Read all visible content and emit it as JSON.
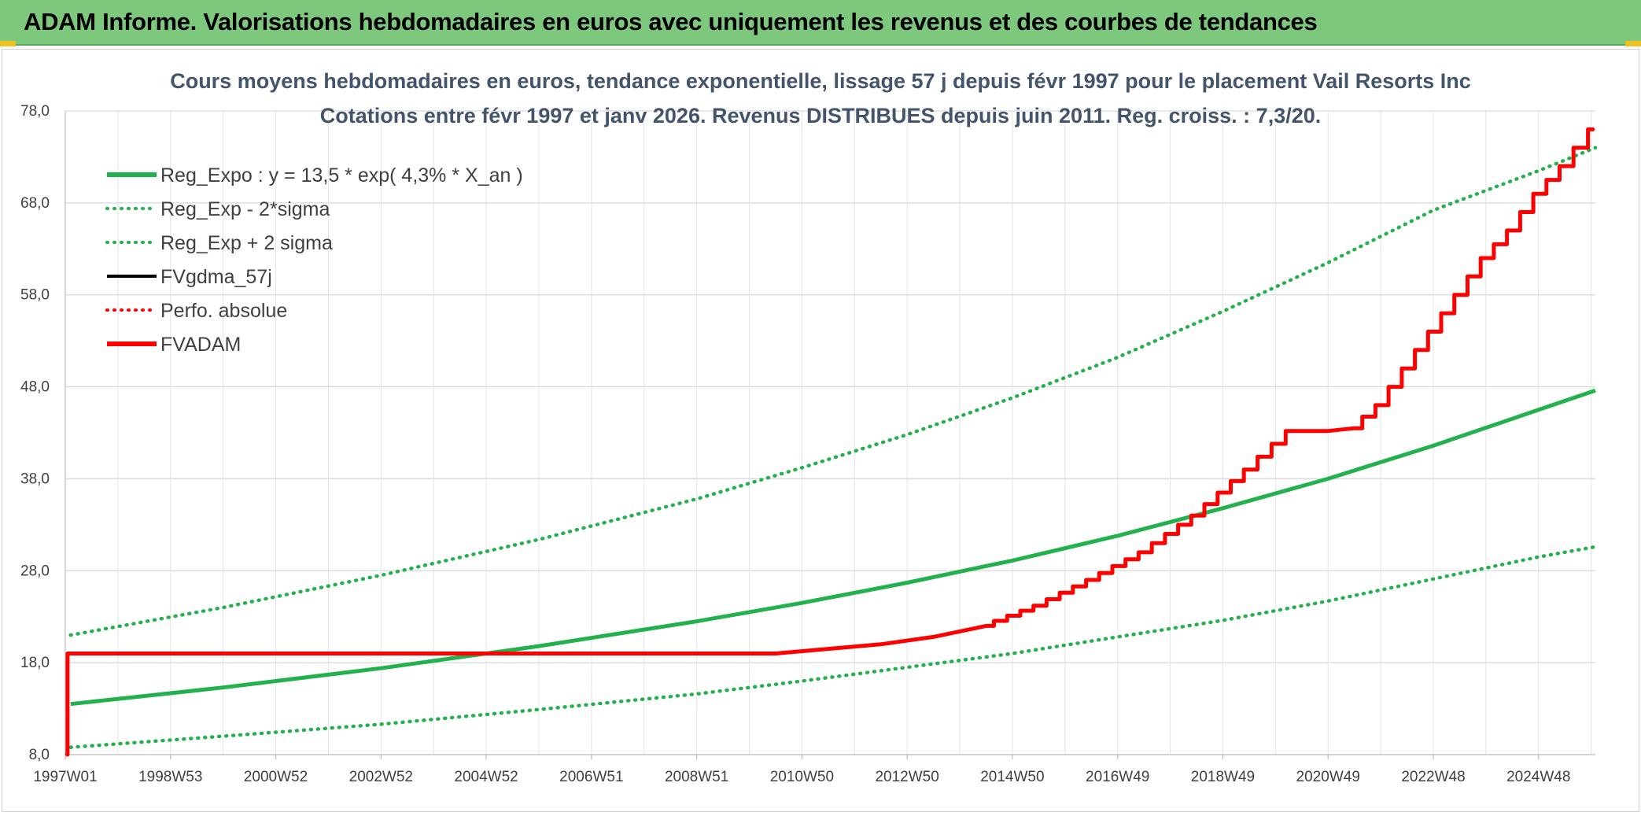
{
  "banner": {
    "title": "ADAM Informe. Valorisations hebdomadaires en euros avec uniquement les revenus et des courbes de tendances"
  },
  "chart_data": {
    "type": "line",
    "title": [
      "Cours moyens hebdomadaires en euros, tendance exponentielle, lissage 57 j depuis févr 1997 pour le placement Vail Resorts Inc",
      "Cotations entre févr 1997 et janv 2026. Revenus DISTRIBUES depuis juin 2011. Reg. croiss. : 7,3/20."
    ],
    "xlabel": "",
    "ylabel": "",
    "x_range": [
      1997.0,
      2026.08
    ],
    "ylim": [
      8.0,
      78.0
    ],
    "y_ticks": [
      8.0,
      18.0,
      28.0,
      38.0,
      48.0,
      58.0,
      68.0,
      78.0
    ],
    "y_tick_labels": [
      "8,0",
      "18,0",
      "28,0",
      "38,0",
      "48,0",
      "58,0",
      "68,0",
      "78,0"
    ],
    "x_ticks": [
      1997.0,
      1999.0,
      2001.0,
      2003.0,
      2005.0,
      2007.0,
      2009.0,
      2011.0,
      2013.0,
      2015.0,
      2017.0,
      2019.0,
      2021.0,
      2023.0,
      2025.0
    ],
    "x_tick_labels": [
      "1997W01",
      "1998W53",
      "2000W52",
      "2002W52",
      "2004W52",
      "2006W51",
      "2008W51",
      "2010W50",
      "2012W50",
      "2014W50",
      "2016W49",
      "2018W49",
      "2020W49",
      "2022W48",
      "2024W48"
    ],
    "grid": true,
    "legend_position": "top-left",
    "series": [
      {
        "name": "Reg_Expo : y = 13,5 * exp( 4,3% *  X_an )",
        "color": "#22b14c",
        "style": "solid",
        "x": [
          1997.1,
          2000,
          2003,
          2006,
          2009,
          2011,
          2013,
          2015,
          2017,
          2019,
          2021,
          2023,
          2025,
          2026.08
        ],
        "values": [
          13.5,
          15.3,
          17.4,
          19.8,
          22.5,
          24.5,
          26.7,
          29.1,
          31.8,
          34.8,
          38.0,
          41.6,
          45.5,
          47.6
        ]
      },
      {
        "name": "Reg_Exp - 2*sigma",
        "color": "#22b14c",
        "style": "dotted",
        "x": [
          1997.1,
          2000,
          2003,
          2006,
          2009,
          2011,
          2013,
          2015,
          2017,
          2019,
          2021,
          2023,
          2025,
          2026.08
        ],
        "values": [
          8.8,
          10.0,
          11.3,
          12.9,
          14.6,
          16.0,
          17.5,
          19.0,
          20.8,
          22.6,
          24.7,
          27.1,
          29.5,
          30.6
        ]
      },
      {
        "name": "Reg_Exp + 2 sigma",
        "color": "#22b14c",
        "style": "dotted",
        "x": [
          1997.1,
          2000,
          2003,
          2006,
          2009,
          2011,
          2013,
          2015,
          2017,
          2019,
          2021,
          2023,
          2025,
          2026.08
        ],
        "values": [
          21.0,
          24.0,
          27.5,
          31.4,
          35.8,
          39.2,
          42.8,
          46.8,
          51.2,
          56.2,
          61.5,
          67.2,
          71.5,
          74.0
        ]
      },
      {
        "name": "FVgdma_57j",
        "color": "#000000",
        "style": "solid",
        "x": [
          1997.02,
          1997.06,
          1997.1,
          2010.5,
          2011.5,
          2012.5,
          2013.5,
          2014.5,
          2015.5,
          2016.5,
          2017.5,
          2018.5,
          2019.5,
          2020.3,
          2021.0,
          2021.5,
          2022.0,
          2022.5,
          2023.0,
          2023.5,
          2024.0,
          2024.5,
          2025.0,
          2025.5,
          2026.05
        ],
        "values": [
          8.0,
          19.0,
          19.0,
          19.0,
          19.5,
          20.0,
          20.8,
          22.0,
          24.2,
          27.0,
          30.0,
          34.0,
          39.0,
          43.2,
          43.2,
          43.5,
          46.0,
          50.0,
          54.0,
          58.0,
          62.0,
          65.0,
          69.0,
          72.0,
          76.0
        ]
      },
      {
        "name": "Perfo. absolue",
        "color": "#ff0000",
        "style": "dotted",
        "x": [
          1997.02,
          1997.06,
          1997.1,
          2010.5,
          2011.5,
          2012.5,
          2013.5,
          2014.5,
          2015.5,
          2016.5,
          2017.5,
          2018.5,
          2019.5,
          2020.3,
          2021.0,
          2021.5,
          2022.0,
          2022.5,
          2023.0,
          2023.5,
          2024.0,
          2024.5,
          2025.0,
          2025.5,
          2026.05
        ],
        "values": [
          8.0,
          19.0,
          19.0,
          19.0,
          19.5,
          20.0,
          20.8,
          22.0,
          24.2,
          27.0,
          30.0,
          34.0,
          39.0,
          43.2,
          43.2,
          43.5,
          46.0,
          50.0,
          54.0,
          58.0,
          62.0,
          65.0,
          69.0,
          72.0,
          76.0
        ]
      },
      {
        "name": "FVADAM",
        "color": "#ff0000",
        "style": "solid",
        "x": [
          1997.02,
          1997.06,
          1997.1,
          2010.5,
          2011.5,
          2012.5,
          2013.5,
          2014.5,
          2015.5,
          2016.5,
          2017.5,
          2018.5,
          2019.5,
          2020.3,
          2021.0,
          2021.5,
          2022.0,
          2022.5,
          2023.0,
          2023.5,
          2024.0,
          2024.5,
          2025.0,
          2025.5,
          2026.05
        ],
        "values": [
          8.0,
          19.0,
          19.0,
          19.0,
          19.5,
          20.0,
          20.8,
          22.0,
          24.2,
          27.0,
          30.0,
          34.0,
          39.0,
          43.2,
          43.2,
          43.5,
          46.0,
          50.0,
          54.0,
          58.0,
          62.0,
          65.0,
          69.0,
          72.0,
          76.0
        ]
      }
    ]
  }
}
